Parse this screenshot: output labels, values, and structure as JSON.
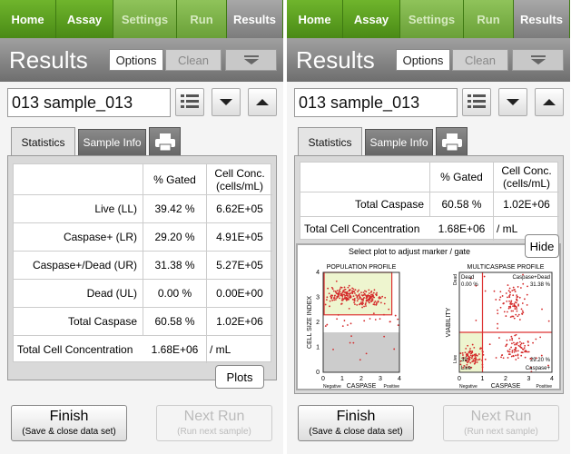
{
  "panels": [
    {
      "nav": [
        "Home",
        "Assay",
        "Settings",
        "Run",
        "Results"
      ],
      "title": "Results",
      "buttons": [
        "Options",
        "Clean"
      ],
      "sample": "013 sample_013",
      "tabs": [
        "Statistics",
        "Sample Info"
      ],
      "table": {
        "header": [
          "% Gated",
          "Cell Conc. (cells/mL)"
        ],
        "rows": [
          [
            "Live (LL)",
            "39.42 %",
            "6.62E+05"
          ],
          [
            "Caspase+ (LR)",
            "29.20 %",
            "4.91E+05"
          ],
          [
            "Caspase+/Dead (UR)",
            "31.38 %",
            "5.27E+05"
          ],
          [
            "Dead (UL)",
            "0.00 %",
            "0.00E+00"
          ],
          [
            "Total Caspase",
            "60.58 %",
            "1.02E+06"
          ]
        ],
        "total": [
          "Total Cell Concentration",
          "1.68E+06",
          "/ mL"
        ]
      },
      "plots_button": "Plots",
      "finish": {
        "label": "Finish",
        "sub": "(Save & close data set)"
      },
      "next_run": {
        "label": "Next Run",
        "sub": "(Run next sample)"
      }
    },
    {
      "nav": [
        "Home",
        "Assay",
        "Settings",
        "Run",
        "Results"
      ],
      "title": "Results",
      "buttons": [
        "Options",
        "Clean"
      ],
      "sample": "013 sample_013",
      "tabs": [
        "Statistics",
        "Sample Info"
      ],
      "table": {
        "header": [
          "% Gated",
          "Cell Conc. (cells/mL)"
        ],
        "rows": [
          [
            "Total Caspase",
            "60.58 %",
            "1.02E+06"
          ]
        ],
        "total": [
          "Total Cell Concentration",
          "1.68E+06",
          "/ mL"
        ]
      },
      "plot_area": {
        "hint": "Select plot to adjust marker / gate",
        "hide": "Hide",
        "population": {
          "title": "POPULATION PROFILE",
          "ylabel": "CELL SIZE INDEX",
          "xlabel": "CASPASE",
          "neg": "Negative",
          "pos": "Positive",
          "ticks": [
            "0",
            "1",
            "2",
            "3",
            "4"
          ]
        },
        "multicaspase": {
          "title": "MULTICASPASE PROFILE",
          "ylabel": "VIABILITY",
          "xlabel": "CASPASE",
          "neg": "Negative",
          "pos": "Positive",
          "ticks": [
            "0",
            "1",
            "2",
            "3",
            "4"
          ],
          "y_dead": "Dead",
          "y_live": "Live",
          "quadrants": {
            "ul": [
              "Dead",
              "0.00 %"
            ],
            "ur": [
              "Caspase+Dead",
              "31.38 %"
            ],
            "ll": [
              "39",
              "Live"
            ],
            "lr": [
              "29.20 %",
              "Caspase+"
            ]
          }
        }
      },
      "finish": {
        "label": "Finish",
        "sub": "(Save & close data set)"
      },
      "next_run": {
        "label": "Next Run",
        "sub": "(Run next sample)"
      }
    }
  ]
}
